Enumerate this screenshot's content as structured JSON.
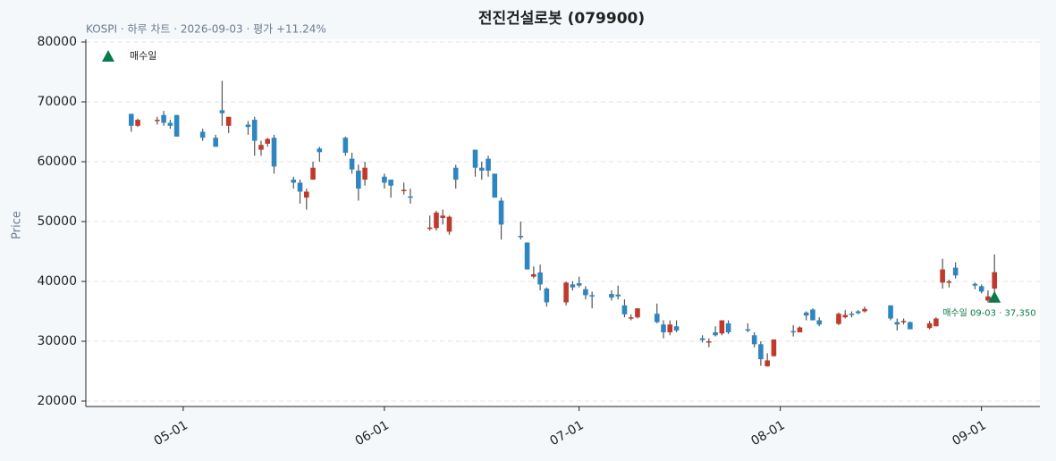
{
  "chart_data": {
    "type": "candlestick",
    "title": "전진건설로봇 (079900)",
    "subtitle": "KOSPI · 하루 차트 · 2026-09-03 · 평가 +11.24%",
    "y_label": "Price",
    "x": [
      "04-23",
      "04-24",
      "04-27",
      "04-28",
      "04-29",
      "04-30",
      "05-04",
      "05-06",
      "05-07",
      "05-08",
      "05-11",
      "05-12",
      "05-13",
      "05-14",
      "05-15",
      "05-18",
      "05-19",
      "05-20",
      "05-21",
      "05-22",
      "05-26",
      "05-27",
      "05-28",
      "05-29",
      "06-01",
      "06-02",
      "06-04",
      "06-05",
      "06-08",
      "06-09",
      "06-10",
      "06-11",
      "06-12",
      "06-15",
      "06-16",
      "06-17",
      "06-18",
      "06-19",
      "06-22",
      "06-23",
      "06-24",
      "06-25",
      "06-26",
      "06-29",
      "06-30",
      "07-01",
      "07-02",
      "07-03",
      "07-06",
      "07-07",
      "07-08",
      "07-09",
      "07-10",
      "07-13",
      "07-14",
      "07-15",
      "07-16",
      "07-20",
      "07-21",
      "07-22",
      "07-23",
      "07-24",
      "07-27",
      "07-28",
      "07-29",
      "07-30",
      "07-31",
      "08-03",
      "08-04",
      "08-05",
      "08-06",
      "08-07",
      "08-10",
      "08-11",
      "08-12",
      "08-13",
      "08-14",
      "08-18",
      "08-19",
      "08-20",
      "08-21",
      "08-24",
      "08-25",
      "08-26",
      "08-27",
      "08-28",
      "08-31",
      "09-01",
      "09-02",
      "09-03"
    ],
    "open": [
      68000,
      66000,
      66800,
      67800,
      66500,
      67800,
      65000,
      64000,
      68600,
      66000,
      66200,
      67000,
      62000,
      63000,
      64000,
      57000,
      56500,
      54000,
      57000,
      62200,
      64000,
      60500,
      58500,
      57000,
      57500,
      57000,
      55200,
      54200,
      48900,
      48900,
      50600,
      48300,
      59000,
      62000,
      59000,
      60500,
      58000,
      53500,
      47600,
      46500,
      40800,
      41500,
      38800,
      36500,
      39500,
      39700,
      38700,
      37700,
      37900,
      37800,
      36000,
      33800,
      34000,
      34600,
      32800,
      31500,
      32500,
      30500,
      29800,
      31500,
      31300,
      33000,
      32000,
      31000,
      29500,
      25800,
      27500,
      31700,
      31500,
      34800,
      35300,
      33500,
      32900,
      34000,
      34600,
      35000,
      35000,
      36000,
      33200,
      33200,
      33200,
      32200,
      32500,
      39800,
      39800,
      42300,
      39600,
      39200,
      36800,
      38800
    ],
    "high": [
      68000,
      67200,
      67500,
      68500,
      67000,
      67800,
      65500,
      64500,
      73500,
      67500,
      66800,
      67500,
      63500,
      64000,
      64500,
      57500,
      57000,
      55500,
      60000,
      62500,
      64200,
      61500,
      59500,
      60000,
      58000,
      57000,
      56500,
      55500,
      51000,
      51800,
      52000,
      51000,
      59500,
      62000,
      60000,
      61000,
      58000,
      54000,
      50000,
      46500,
      42500,
      42800,
      39000,
      40000,
      40000,
      40800,
      39200,
      38300,
      38500,
      39300,
      37000,
      34500,
      35500,
      36300,
      33500,
      33500,
      33500,
      31000,
      30500,
      32500,
      33500,
      33500,
      33000,
      31500,
      30000,
      28000,
      30300,
      32700,
      32500,
      35000,
      35500,
      34000,
      34800,
      35200,
      35000,
      35200,
      35800,
      36000,
      33800,
      33800,
      33300,
      33400,
      34000,
      43800,
      40300,
      43200,
      39800,
      39500,
      38500,
      44500
    ],
    "low": [
      65000,
      65800,
      66200,
      66000,
      65500,
      64200,
      63500,
      62500,
      66000,
      64800,
      64500,
      61000,
      61000,
      62500,
      58000,
      55500,
      53000,
      52000,
      57000,
      60000,
      61000,
      58000,
      53500,
      56000,
      55500,
      54000,
      54500,
      53000,
      48500,
      48500,
      49500,
      47800,
      55500,
      57500,
      57000,
      57500,
      54000,
      47000,
      47000,
      42000,
      40500,
      38500,
      35800,
      36000,
      38500,
      39000,
      37000,
      35500,
      36800,
      37000,
      34000,
      33500,
      33800,
      33000,
      30500,
      31000,
      31500,
      29800,
      29000,
      30800,
      31000,
      31200,
      31500,
      29000,
      25900,
      25800,
      27500,
      30800,
      31500,
      33500,
      33500,
      32500,
      32700,
      33800,
      34000,
      34500,
      34800,
      33500,
      31800,
      32800,
      32000,
      32000,
      32500,
      38800,
      39000,
      40500,
      38700,
      38000,
      36500,
      37300
    ],
    "close": [
      66000,
      67000,
      67000,
      66500,
      66000,
      64200,
      64000,
      62500,
      68100,
      67500,
      65800,
      63500,
      62800,
      63800,
      59200,
      56500,
      55000,
      55000,
      59000,
      61600,
      61500,
      58700,
      55500,
      59000,
      56500,
      56000,
      55300,
      54000,
      49000,
      51500,
      51000,
      50800,
      57000,
      59000,
      58500,
      58500,
      54000,
      49500,
      47500,
      42000,
      41200,
      39500,
      36500,
      39800,
      39000,
      39300,
      37700,
      37500,
      37300,
      37500,
      34500,
      34000,
      35500,
      33200,
      31500,
      32800,
      31800,
      30200,
      30000,
      31000,
      33500,
      31500,
      31900,
      29500,
      27000,
      26800,
      30300,
      31500,
      32300,
      34300,
      33500,
      32800,
      34600,
      34400,
      34500,
      34700,
      35400,
      33800,
      32800,
      33400,
      32000,
      33000,
      33800,
      42000,
      40000,
      41000,
      39300,
      38300,
      37500,
      41550
    ],
    "up_color": "#c0392b",
    "down_color": "#2e86c1",
    "wick_color": "#555555",
    "xlim": [
      "04-16",
      "09-10"
    ],
    "xticks": [
      "05-01",
      "06-01",
      "07-01",
      "08-01",
      "09-01"
    ],
    "ylim": [
      19100,
      80450
    ],
    "yticks": [
      20000,
      30000,
      40000,
      50000,
      60000,
      70000,
      80000
    ],
    "grid": true,
    "buy_marker": {
      "name": "매수일",
      "x": "09-03",
      "value": 37350,
      "label": "매수일 09-03 · 37,350",
      "color": "#0b7a4b"
    },
    "legend": "upper left"
  }
}
